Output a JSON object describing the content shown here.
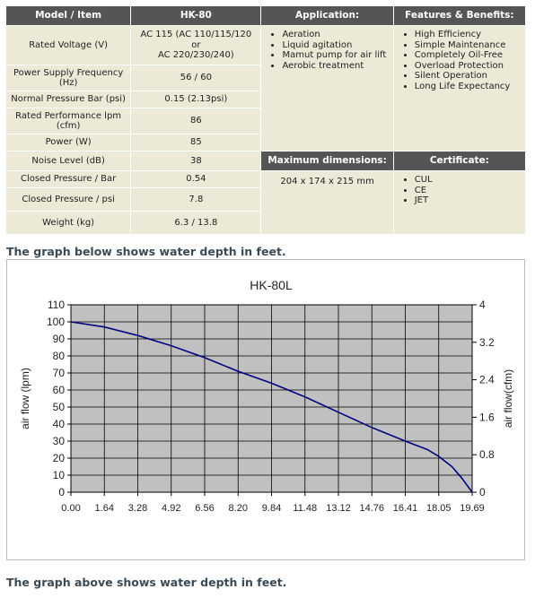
{
  "spec_table": {
    "headers": {
      "model_item": "Model / Item",
      "model": "HK-80",
      "application": "Application:",
      "features": "Features & Benefits:",
      "max_dimensions": "Maximum dimensions:",
      "certificate": "Certificate:"
    },
    "rows": [
      {
        "label": "Rated Voltage (V)",
        "value": "AC 115 (AC 110/115/120 or AC 220/230/240)"
      },
      {
        "label": "Power Supply Frequency (Hz)",
        "value": "56 / 60"
      },
      {
        "label": "Normal Pressure Bar (psi)",
        "value": "0.15 (2.13psi)"
      },
      {
        "label": "Rated Performance lpm (cfm)",
        "value": "86"
      },
      {
        "label": "Power (W)",
        "value": "85"
      },
      {
        "label": "Noise Level (dB)",
        "value": "38"
      },
      {
        "label": "Closed Pressure / Bar",
        "value": "0.54"
      },
      {
        "label": "Closed Pressure / psi",
        "value": "7.8"
      },
      {
        "label": "Weight (kg)",
        "value": "6.3 / 13.8"
      }
    ],
    "voltage_parts": [
      "AC 115 (AC 110/115/120",
      "or",
      "AC 220/230/240)"
    ],
    "frequency_label_parts": [
      "Power Supply Frequency",
      "(Hz)"
    ],
    "performance_label_parts": [
      "Rated Performance lpm",
      "(cfm)"
    ],
    "applications": [
      "Aeration",
      "Liquid agitation",
      "Mamut pump for air lift",
      "Aerobic treatment"
    ],
    "features": [
      "High Efficiency",
      "Simple Maintenance",
      "Completely Oil-Free",
      "Overload Protection",
      "Silent Operation",
      "Long Life Expectancy"
    ],
    "dimensions": "204 x 174 x 215 mm",
    "certificates": [
      "CUL",
      "CE",
      "JET"
    ]
  },
  "caption_top": "The graph below shows water depth in feet.",
  "caption_bottom": "The graph above shows water depth in feet.",
  "colors": {
    "header_bg": "#555555",
    "cell_bg": "#ece9d7",
    "plot_bg": "#c0c0c0",
    "line": "#000080",
    "caption": "#3b4a55"
  },
  "chart_data": {
    "type": "line",
    "title": "HK-80L",
    "xlabel": "",
    "ylabel": "air flow (lpm)",
    "y2label": "air flow(cfm)",
    "x_ticks": [
      "0.00",
      "1.64",
      "3.28",
      "4.92",
      "6.56",
      "8.20",
      "9.84",
      "11.48",
      "13.12",
      "14.76",
      "16.41",
      "18.05",
      "19.69"
    ],
    "ylim": [
      0,
      110
    ],
    "y_ticks": [
      0,
      10,
      20,
      30,
      40,
      50,
      60,
      70,
      80,
      90,
      100,
      110
    ],
    "y2lim": [
      0,
      4
    ],
    "y2_ticks": [
      "0",
      "0.8",
      "1.6",
      "2.4",
      "3.2",
      "4"
    ],
    "grid": true,
    "series": [
      {
        "x": [
          0.0,
          1.64,
          3.28,
          4.92,
          6.56,
          8.2,
          9.84,
          11.48,
          13.12,
          14.76,
          16.41,
          17.5,
          18.05,
          18.7,
          19.2,
          19.69
        ],
        "values": [
          100,
          97,
          92,
          86,
          79,
          71,
          64,
          56,
          47,
          38,
          30,
          25,
          21,
          15,
          8,
          0
        ]
      }
    ]
  }
}
